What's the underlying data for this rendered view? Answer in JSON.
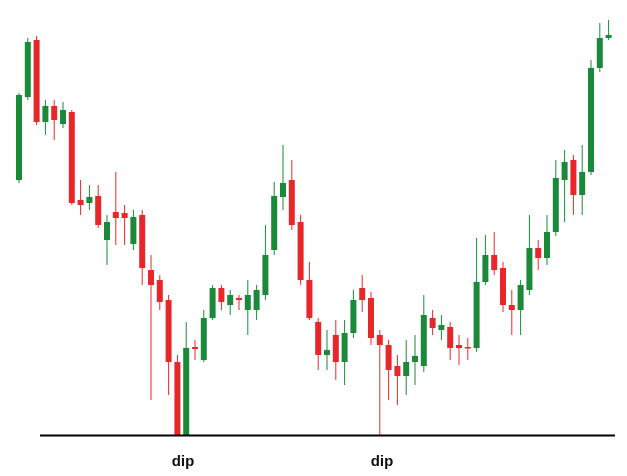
{
  "chart_data": {
    "type": "candlestick",
    "up_color": "#1a8a3a",
    "down_color": "#e8272a",
    "ylim": [
      0,
      420
    ],
    "open": [
      255,
      338,
      395,
      313,
      329,
      311,
      323,
      235,
      232,
      239,
      195,
      223,
      222,
      191,
      220,
      165,
      155,
      135,
      73,
      0,
      88,
      75,
      117,
      147,
      130,
      137,
      125,
      125,
      140,
      185,
      238,
      255,
      213,
      155,
      113,
      80,
      100,
      73,
      102,
      147,
      137,
      100,
      90,
      69,
      59,
      73,
      69,
      117,
      105,
      108,
      90,
      88,
      87,
      153,
      180,
      167,
      130,
      125,
      145,
      187,
      177,
      203,
      255,
      275,
      240,
      263,
      367,
      397
    ],
    "high": [
      342,
      397,
      399,
      335,
      335,
      333,
      325,
      255,
      250,
      250,
      220,
      263,
      230,
      225,
      225,
      180,
      160,
      140,
      80,
      113,
      95,
      125,
      150,
      150,
      145,
      140,
      155,
      150,
      210,
      253,
      290,
      275,
      220,
      173,
      117,
      105,
      115,
      115,
      145,
      160,
      143,
      105,
      95,
      80,
      95,
      100,
      140,
      125,
      120,
      113,
      100,
      97,
      197,
      200,
      203,
      173,
      145,
      155,
      220,
      195,
      220,
      275,
      285,
      280,
      290,
      375,
      412,
      415
    ],
    "low": [
      252,
      335,
      310,
      300,
      295,
      307,
      230,
      220,
      225,
      207,
      170,
      190,
      190,
      185,
      150,
      35,
      125,
      40,
      0,
      0,
      75,
      73,
      115,
      125,
      120,
      125,
      100,
      115,
      135,
      180,
      225,
      205,
      150,
      115,
      65,
      65,
      55,
      50,
      97,
      123,
      90,
      0,
      35,
      30,
      40,
      50,
      63,
      100,
      95,
      75,
      70,
      75,
      83,
      150,
      160,
      123,
      100,
      100,
      140,
      165,
      170,
      199,
      213,
      220,
      220,
      260,
      363,
      395
    ],
    "close": [
      340,
      393,
      313,
      329,
      315,
      325,
      232,
      230,
      238,
      210,
      213,
      217,
      217,
      218,
      167,
      150,
      133,
      73,
      0,
      87,
      86,
      117,
      147,
      133,
      140,
      135,
      140,
      145,
      180,
      239,
      252,
      210,
      155,
      117,
      80,
      85,
      73,
      102,
      135,
      135,
      97,
      90,
      65,
      59,
      73,
      79,
      120,
      107,
      110,
      87,
      87,
      87,
      153,
      180,
      165,
      130,
      125,
      150,
      187,
      177,
      203,
      257,
      273,
      240,
      263,
      367,
      397,
      400
    ],
    "annotations": [
      {
        "text": "dip"
      },
      {
        "text": "dip"
      }
    ]
  }
}
